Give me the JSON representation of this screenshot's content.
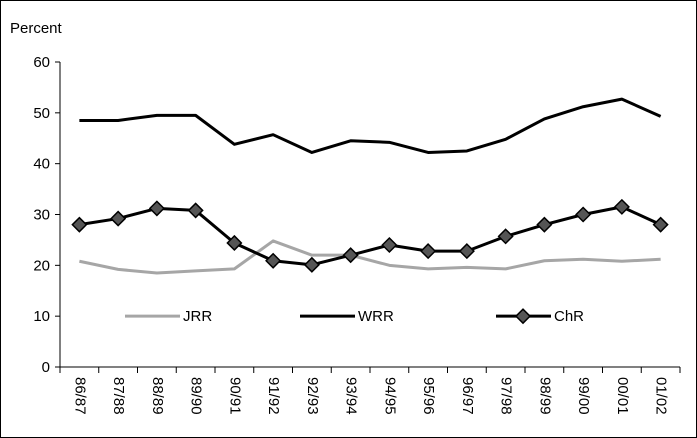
{
  "chart_data": {
    "type": "line",
    "y_label": "Percent",
    "categories": [
      "86/87",
      "87/88",
      "88/89",
      "89/90",
      "90/91",
      "91/92",
      "92/93",
      "93/94",
      "94/95",
      "95/96",
      "96/97",
      "97/98",
      "98/99",
      "99/00",
      "00/01",
      "01/02"
    ],
    "series": [
      {
        "name": "JRR",
        "color": "#a6a6a6",
        "marker": "none",
        "values": [
          20.8,
          19.2,
          18.5,
          18.9,
          19.3,
          24.8,
          22,
          22,
          20,
          19.3,
          19.6,
          19.3,
          20.9,
          21.2,
          20.8,
          21.2
        ]
      },
      {
        "name": "WRR",
        "color": "#000000",
        "marker": "none",
        "values": [
          48.5,
          48.5,
          49.5,
          49.5,
          43.8,
          45.7,
          42.2,
          44.5,
          44.2,
          42.2,
          42.5,
          44.8,
          48.8,
          51.2,
          52.7,
          49.3
        ]
      },
      {
        "name": "ChR",
        "color": "#000000",
        "marker": "diamond",
        "values": [
          28,
          29.2,
          31.2,
          30.8,
          24.4,
          20.9,
          20.1,
          22,
          24,
          22.8,
          22.8,
          25.7,
          28,
          30,
          31.5,
          28
        ]
      }
    ],
    "ylim": [
      0,
      60
    ],
    "yticks": [
      0,
      10,
      20,
      30,
      40,
      50,
      60
    ],
    "grid": false
  }
}
